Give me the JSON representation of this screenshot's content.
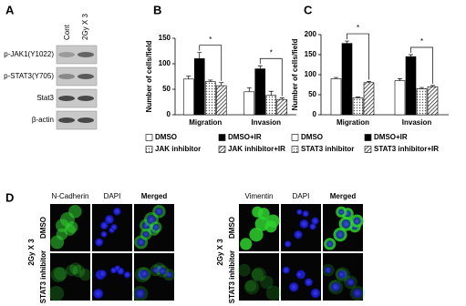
{
  "panel_labels": [
    "A",
    "B",
    "C",
    "D"
  ],
  "blot": {
    "columns": [
      "Cont",
      "2Gy X 3"
    ],
    "rows": [
      "p-JAK1(Y1022)",
      "p-STAT3(Y705)",
      "Stat3",
      "β-actin"
    ]
  },
  "chart_data": [
    {
      "type": "bar",
      "ylabel": "Number of cells/field",
      "categories": [
        "Migration",
        "Invasion"
      ],
      "ylim": [
        0,
        150
      ],
      "yticks": [
        0,
        50,
        100,
        150
      ],
      "series": [
        {
          "name": "DMSO",
          "color": "#ffffff",
          "pattern": "none",
          "values": [
            70,
            45
          ],
          "errors": [
            6,
            8
          ]
        },
        {
          "name": "DMSO+IR",
          "color": "#000000",
          "pattern": "none",
          "values": [
            110,
            90
          ],
          "errors": [
            12,
            6
          ]
        },
        {
          "name": "JAK inhibitor",
          "color": "#ffffff",
          "pattern": "dots",
          "values": [
            65,
            38
          ],
          "errors": [
            3,
            8
          ]
        },
        {
          "name": "JAK inhibitor+IR",
          "color": "#ffffff",
          "pattern": "hatch",
          "values": [
            57,
            30
          ],
          "errors": [
            6,
            3
          ]
        }
      ],
      "annotations": [
        "*",
        "*"
      ]
    },
    {
      "type": "bar",
      "ylabel": "Number of cells/field",
      "categories": [
        "Migration",
        "Invasion"
      ],
      "ylim": [
        0,
        200
      ],
      "yticks": [
        0,
        50,
        100,
        150,
        200
      ],
      "series": [
        {
          "name": "DMSO",
          "color": "#ffffff",
          "pattern": "none",
          "values": [
            90,
            85
          ],
          "errors": [
            3,
            5
          ]
        },
        {
          "name": "DMSO+IR",
          "color": "#000000",
          "pattern": "none",
          "values": [
            178,
            145
          ],
          "errors": [
            6,
            5
          ]
        },
        {
          "name": "STAT3 inhibitor",
          "color": "#ffffff",
          "pattern": "dots",
          "values": [
            42,
            65
          ],
          "errors": [
            2,
            3
          ]
        },
        {
          "name": "STAT3 inhibitor+IR",
          "color": "#ffffff",
          "pattern": "hatch",
          "values": [
            80,
            70
          ],
          "errors": [
            3,
            3
          ]
        }
      ],
      "annotations": [
        "*",
        "*"
      ]
    }
  ],
  "images": [
    {
      "columns": [
        "N-Cadherin",
        "DAPI",
        "Merged"
      ],
      "rows": [
        "DMSO",
        "STAT3 inhibitor"
      ],
      "group_label": "2Gy X 3"
    },
    {
      "columns": [
        "Vimentin",
        "DAPI",
        "Merged"
      ],
      "rows": [
        "DMSO",
        "STAT3 inhibitor"
      ],
      "group_label": "2Gy X 3"
    }
  ]
}
